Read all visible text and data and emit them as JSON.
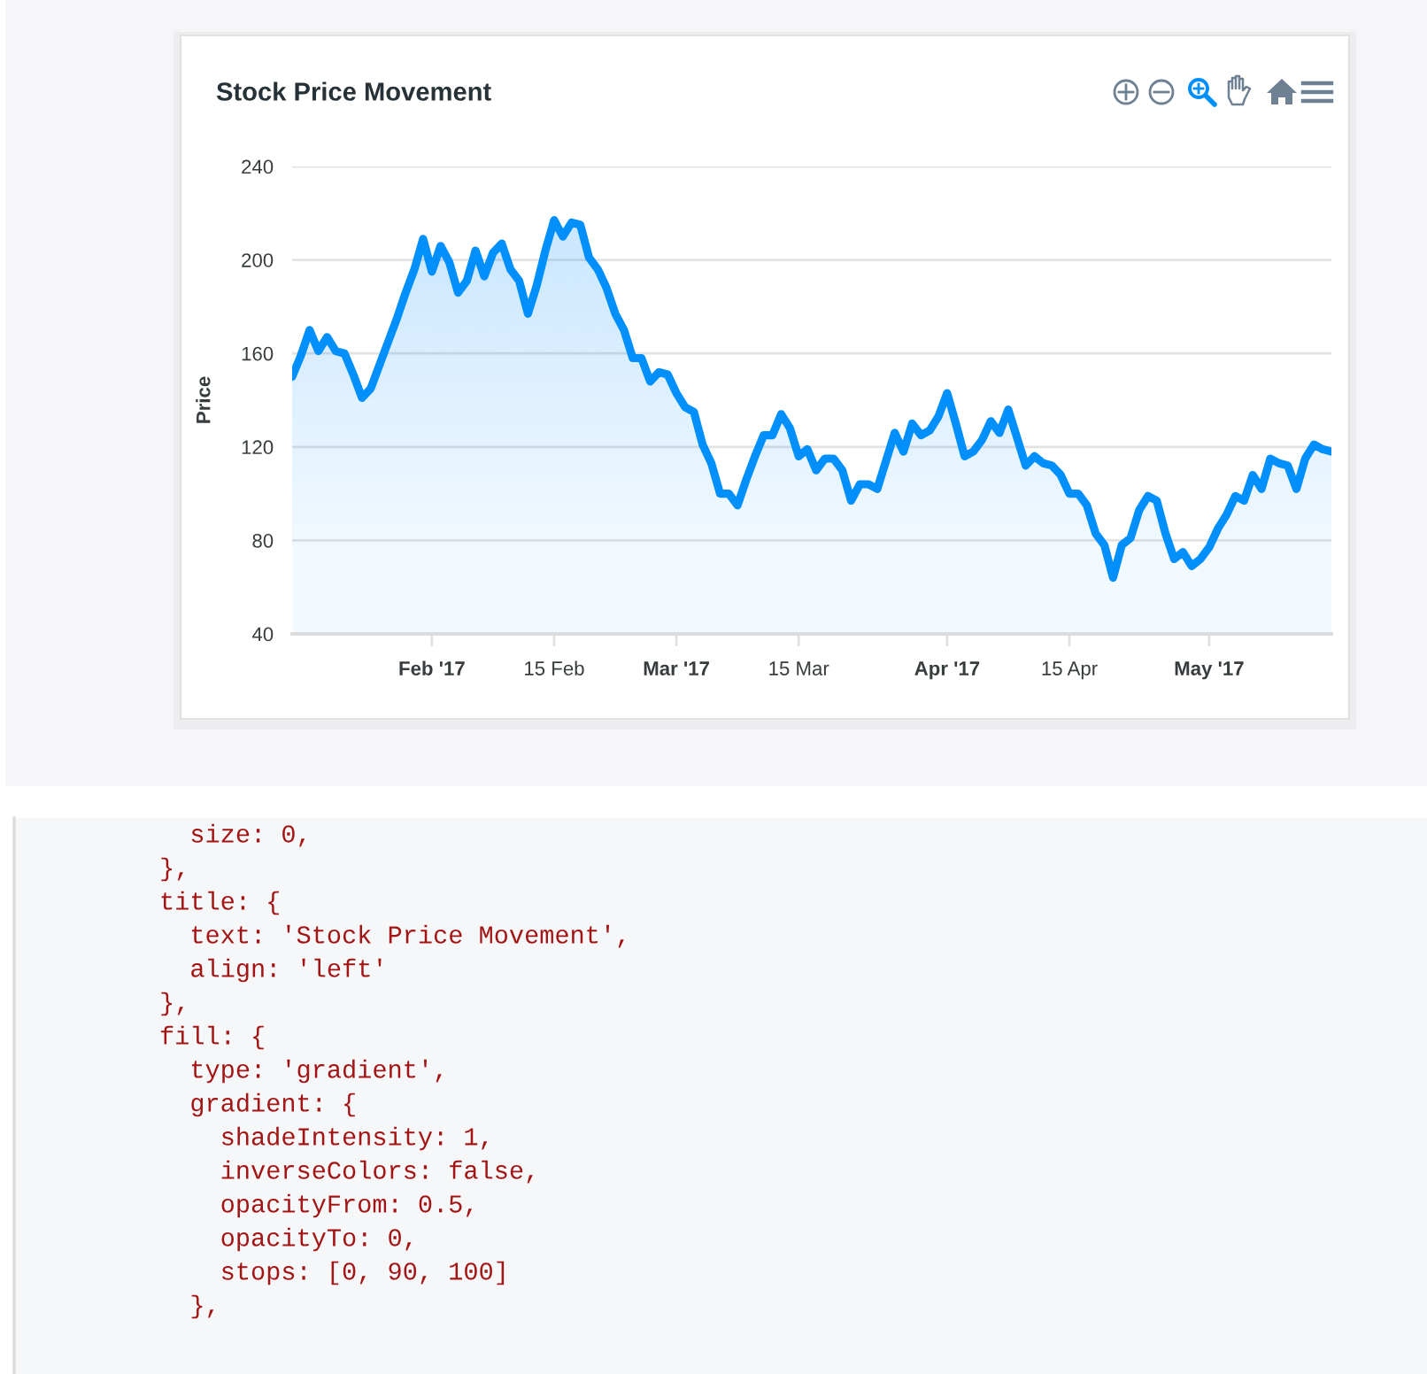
{
  "chart_data": {
    "type": "area",
    "title": "Stock Price Movement",
    "ylabel": "Price",
    "color": "#008ffb",
    "line_style": "solid",
    "grid": "y",
    "x": [
      "2017-01-16",
      "2017-01-17",
      "2017-01-18",
      "2017-01-19",
      "2017-01-20",
      "2017-01-21",
      "2017-01-22",
      "2017-01-23",
      "2017-01-24",
      "2017-01-25",
      "2017-01-26",
      "2017-01-27",
      "2017-01-28",
      "2017-01-29",
      "2017-01-30",
      "2017-01-31",
      "2017-02-01",
      "2017-02-02",
      "2017-02-03",
      "2017-02-04",
      "2017-02-05",
      "2017-02-06",
      "2017-02-07",
      "2017-02-08",
      "2017-02-09",
      "2017-02-10",
      "2017-02-11",
      "2017-02-12",
      "2017-02-13",
      "2017-02-14",
      "2017-02-15",
      "2017-02-16",
      "2017-02-17",
      "2017-02-18",
      "2017-02-19",
      "2017-02-20",
      "2017-02-21",
      "2017-02-22",
      "2017-02-23",
      "2017-02-24",
      "2017-02-25",
      "2017-02-26",
      "2017-02-27",
      "2017-02-28",
      "2017-03-01",
      "2017-03-02",
      "2017-03-03",
      "2017-03-04",
      "2017-03-05",
      "2017-03-06",
      "2017-03-07",
      "2017-03-08",
      "2017-03-09",
      "2017-03-10",
      "2017-03-11",
      "2017-03-12",
      "2017-03-13",
      "2017-03-14",
      "2017-03-15",
      "2017-03-16",
      "2017-03-17",
      "2017-03-18",
      "2017-03-19",
      "2017-03-20",
      "2017-03-21",
      "2017-03-22",
      "2017-03-23",
      "2017-03-24",
      "2017-03-25",
      "2017-03-26",
      "2017-03-27",
      "2017-03-28",
      "2017-03-29",
      "2017-03-30",
      "2017-03-31",
      "2017-04-01",
      "2017-04-02",
      "2017-04-03",
      "2017-04-04",
      "2017-04-05",
      "2017-04-06",
      "2017-04-07",
      "2017-04-08",
      "2017-04-09",
      "2017-04-10",
      "2017-04-11",
      "2017-04-12",
      "2017-04-13",
      "2017-04-14",
      "2017-04-15",
      "2017-04-16",
      "2017-04-17",
      "2017-04-18",
      "2017-04-19",
      "2017-04-20",
      "2017-04-21",
      "2017-04-22",
      "2017-04-23",
      "2017-04-24",
      "2017-04-25",
      "2017-04-26",
      "2017-04-27",
      "2017-04-28",
      "2017-04-29",
      "2017-04-30",
      "2017-05-01",
      "2017-05-02",
      "2017-05-03",
      "2017-05-04",
      "2017-05-05",
      "2017-05-06",
      "2017-05-07",
      "2017-05-08",
      "2017-05-09",
      "2017-05-10",
      "2017-05-11",
      "2017-05-12",
      "2017-05-13",
      "2017-05-14",
      "2017-05-15"
    ],
    "values": [
      150,
      159,
      170,
      161,
      167,
      161,
      160,
      151,
      141,
      145,
      155,
      165,
      175,
      186,
      196,
      209,
      195,
      206,
      199,
      186,
      191,
      204,
      193,
      203,
      207,
      196,
      191,
      177,
      189,
      204,
      217,
      210,
      216,
      215,
      201,
      196,
      188,
      177,
      170,
      158,
      158,
      148,
      152,
      151,
      143,
      137,
      135,
      121,
      113,
      100,
      100,
      95,
      106,
      116,
      125,
      125,
      134,
      128,
      116,
      119,
      110,
      115,
      115,
      110,
      97,
      104,
      104,
      102,
      114,
      126,
      118,
      130,
      125,
      127,
      133,
      143,
      130,
      116,
      118,
      123,
      131,
      126,
      136,
      124,
      112,
      116,
      113,
      112,
      108,
      100,
      100,
      95,
      83,
      78,
      64,
      78,
      81,
      93,
      99,
      97,
      83,
      72,
      75,
      69,
      72,
      77,
      85,
      91,
      99,
      97,
      108,
      102,
      115,
      113,
      112,
      102,
      115,
      121,
      119,
      118
    ],
    "xlim": [
      "2017-01-16",
      "2017-05-15"
    ],
    "xticks": [
      {
        "value": "2017-02-01",
        "label": "Feb '17"
      },
      {
        "value": "2017-02-15",
        "label": "15 Feb"
      },
      {
        "value": "2017-03-01",
        "label": "Mar '17"
      },
      {
        "value": "2017-03-15",
        "label": "15 Mar"
      },
      {
        "value": "2017-04-01",
        "label": "Apr '17"
      },
      {
        "value": "2017-04-15",
        "label": "15 Apr"
      },
      {
        "value": "2017-05-01",
        "label": "May '17"
      }
    ],
    "ylim": [
      40,
      240
    ],
    "yticks": [
      40,
      80,
      120,
      160,
      200,
      240
    ],
    "annotations": [
      "  size: 0,",
      "},",
      "title: {",
      "  text: 'Stock Price Movement',",
      "  align: 'left'",
      "},",
      "fill: {",
      "  type: 'gradient',",
      "  gradient: {",
      "    shadeIntensity: 1,",
      "    inverseColors: false,",
      "    opacityFrom: 0.5,",
      "    opacityTo: 0,",
      "    stops: [0, 90, 100]",
      "  },"
    ]
  }
}
